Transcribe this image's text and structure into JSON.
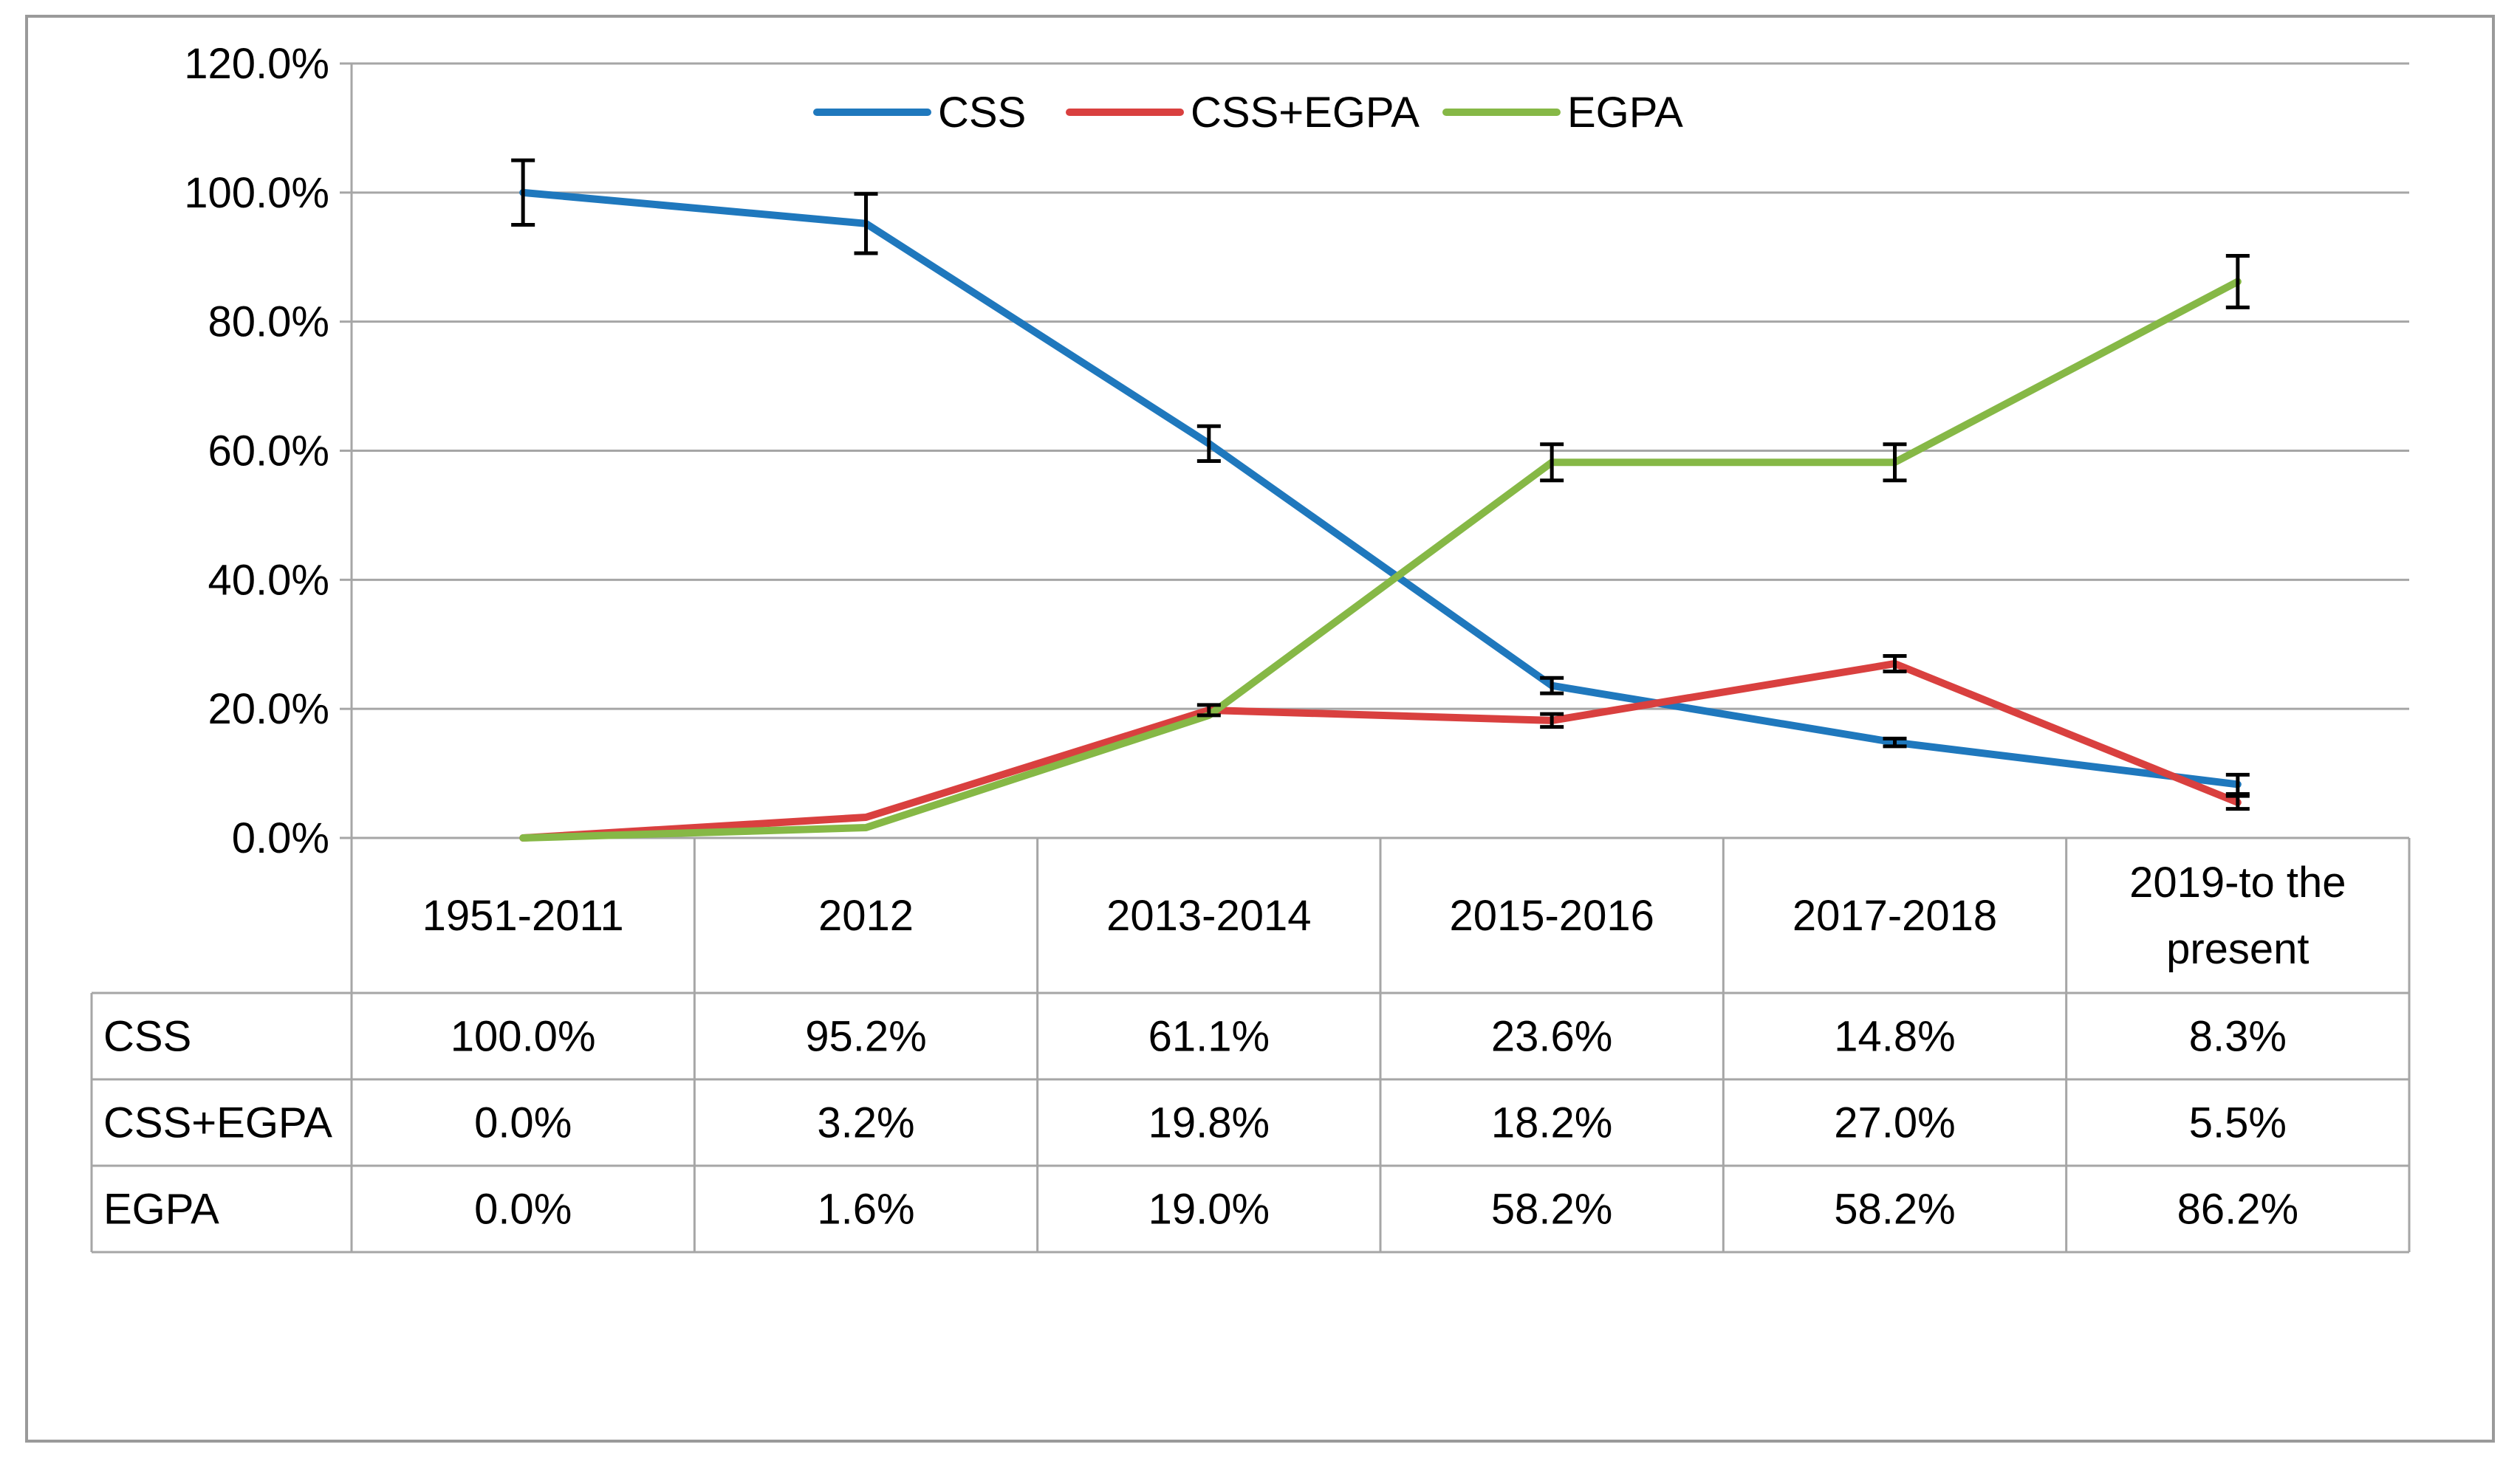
{
  "chart_data": {
    "type": "line",
    "categories": [
      "1951-2011",
      "2012",
      "2013-2014",
      "2015-2016",
      "2017-2018",
      "2019-to the present"
    ],
    "category_lines": [
      [
        "1951-2011"
      ],
      [
        "2012"
      ],
      [
        "2013-2014"
      ],
      [
        "2015-2016"
      ],
      [
        "2017-2018"
      ],
      [
        "2019-to the",
        "present"
      ]
    ],
    "series": [
      {
        "name": "CSS",
        "color": "#1f78bd",
        "values": [
          100.0,
          95.2,
          61.1,
          23.6,
          14.8,
          8.3
        ],
        "labels": [
          "100.0%",
          "95.2%",
          "61.1%",
          "23.6%",
          "14.8%",
          "8.3%"
        ],
        "errors": [
          5.0,
          4.6,
          2.7,
          1.2,
          0.6,
          1.5
        ]
      },
      {
        "name": "CSS+EGPA",
        "color": "#d9403f",
        "values": [
          0.0,
          3.2,
          19.8,
          18.2,
          27.0,
          5.5
        ],
        "labels": [
          "0.0%",
          "3.2%",
          "19.8%",
          "18.2%",
          "27.0%",
          "5.5%"
        ],
        "errors": [
          0,
          0,
          0.8,
          1.0,
          1.2,
          1.0
        ]
      },
      {
        "name": "EGPA",
        "color": "#86b846",
        "values": [
          0.0,
          1.6,
          19.0,
          58.2,
          58.2,
          86.2
        ],
        "labels": [
          "0.0%",
          "1.6%",
          "19.0%",
          "58.2%",
          "58.2%",
          "86.2%"
        ],
        "errors": [
          0,
          0,
          0,
          2.8,
          2.8,
          4.0
        ]
      }
    ],
    "ylim": [
      0,
      120
    ],
    "yticks": [
      {
        "value": 0,
        "label": "0.0%"
      },
      {
        "value": 20,
        "label": "20.0%"
      },
      {
        "value": 40,
        "label": "40.0%"
      },
      {
        "value": 60,
        "label": "60.0%"
      },
      {
        "value": 80,
        "label": "80.0%"
      },
      {
        "value": 100,
        "label": "100.0%"
      },
      {
        "value": 120,
        "label": "120.0%"
      }
    ],
    "grid": true,
    "legend": "top-center",
    "data_table": true
  }
}
